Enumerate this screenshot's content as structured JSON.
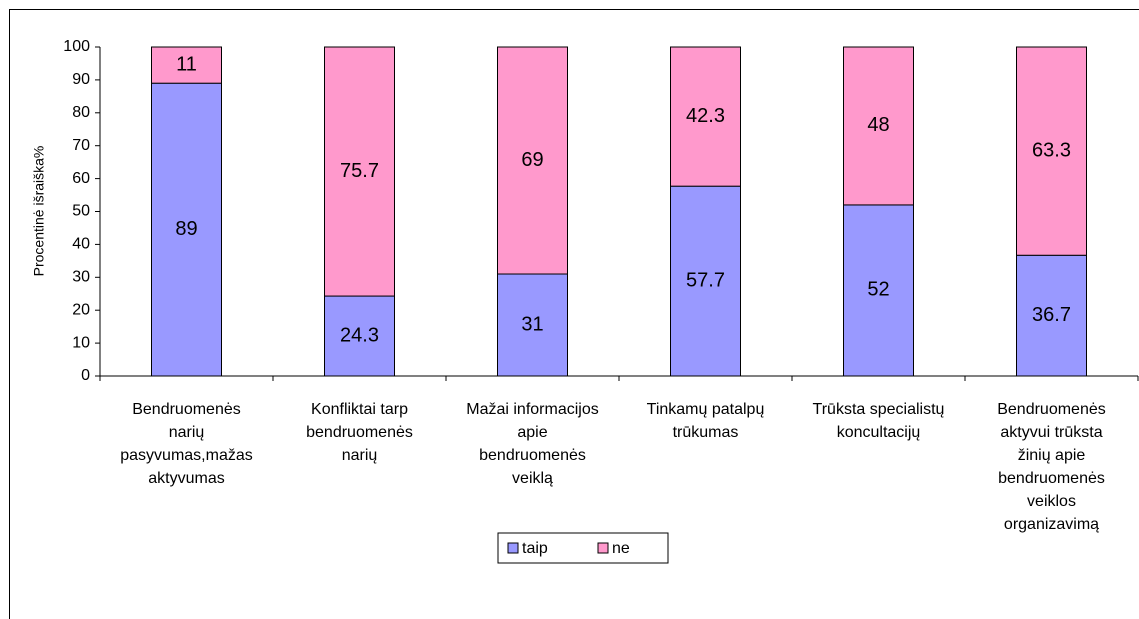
{
  "chart_data": {
    "type": "stacked_bar",
    "y_label": "Procentinė išraiška%",
    "categories": [
      "Bendruomenės\nnarių\npasyvumas,mažas\naktyvumas",
      "Konfliktai tarp\nbendruomenės\nnarių",
      "Mažai informacijos\napie\nbendruomenės\nveiklą",
      "Tinkamų patalpų\ntrūkumas",
      "Trūksta specialistų\nkoncultacijų",
      "Bendruomenės\naktyvui trūksta\nžinių apie\nbendruomenės\nveiklos\norganizavimą"
    ],
    "series": [
      {
        "name": "taip",
        "color": "#9999ff",
        "values": [
          89,
          24.3,
          31,
          57.7,
          52,
          36.7
        ]
      },
      {
        "name": "ne",
        "color": "#ff99cc",
        "values": [
          11,
          75.7,
          69,
          42.3,
          48,
          63.3
        ]
      }
    ],
    "ylim": [
      0,
      100
    ],
    "yticks": [
      0,
      10,
      20,
      30,
      40,
      50,
      60,
      70,
      80,
      90,
      100
    ],
    "legend": "bottom"
  }
}
